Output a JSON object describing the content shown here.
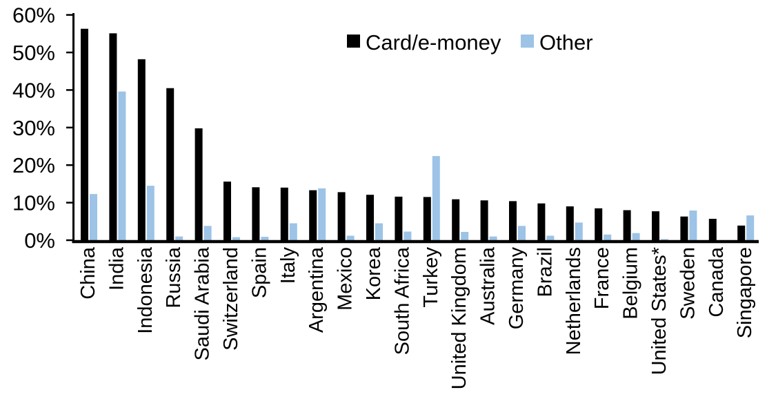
{
  "chart_data": {
    "type": "bar",
    "title": "",
    "xlabel": "",
    "ylabel": "",
    "categories": [
      "China",
      "India",
      "Indonesia",
      "Russia",
      "Saudi Arabia",
      "Switzerland",
      "Spain",
      "Italy",
      "Argentina",
      "Mexico",
      "Korea",
      "South Africa",
      "Turkey",
      "United Kingdom",
      "Australia",
      "Germany",
      "Brazil",
      "Netherlands",
      "France",
      "Belgium",
      "United States*",
      "Sweden",
      "Canada",
      "Singapore"
    ],
    "series": [
      {
        "name": "Card/e-money",
        "color": "#000000",
        "values": [
          56.3,
          55.1,
          48.2,
          40.5,
          29.8,
          15.6,
          14.1,
          14.0,
          13.3,
          12.8,
          12.1,
          11.6,
          11.5,
          10.9,
          10.6,
          10.4,
          9.8,
          9.0,
          8.5,
          8.0,
          7.7,
          6.3,
          5.7,
          3.9
        ]
      },
      {
        "name": "Other",
        "color": "#9DC3E6",
        "values": [
          12.3,
          39.6,
          14.5,
          1.0,
          3.8,
          0.8,
          0.9,
          4.5,
          13.8,
          1.2,
          4.5,
          2.3,
          22.4,
          2.2,
          1.0,
          3.8,
          1.2,
          4.7,
          1.5,
          1.9,
          0.3,
          7.9,
          0.0,
          6.6
        ]
      }
    ],
    "ylim": [
      0,
      60
    ],
    "y_ticks": [
      0,
      10,
      20,
      30,
      40,
      50,
      60
    ],
    "y_tick_labels": [
      "0%",
      "10%",
      "20%",
      "30%",
      "40%",
      "50%",
      "60%"
    ],
    "unit": "percent",
    "grid": false,
    "legend_position": "top-center",
    "x_labels_rotation": -90
  }
}
